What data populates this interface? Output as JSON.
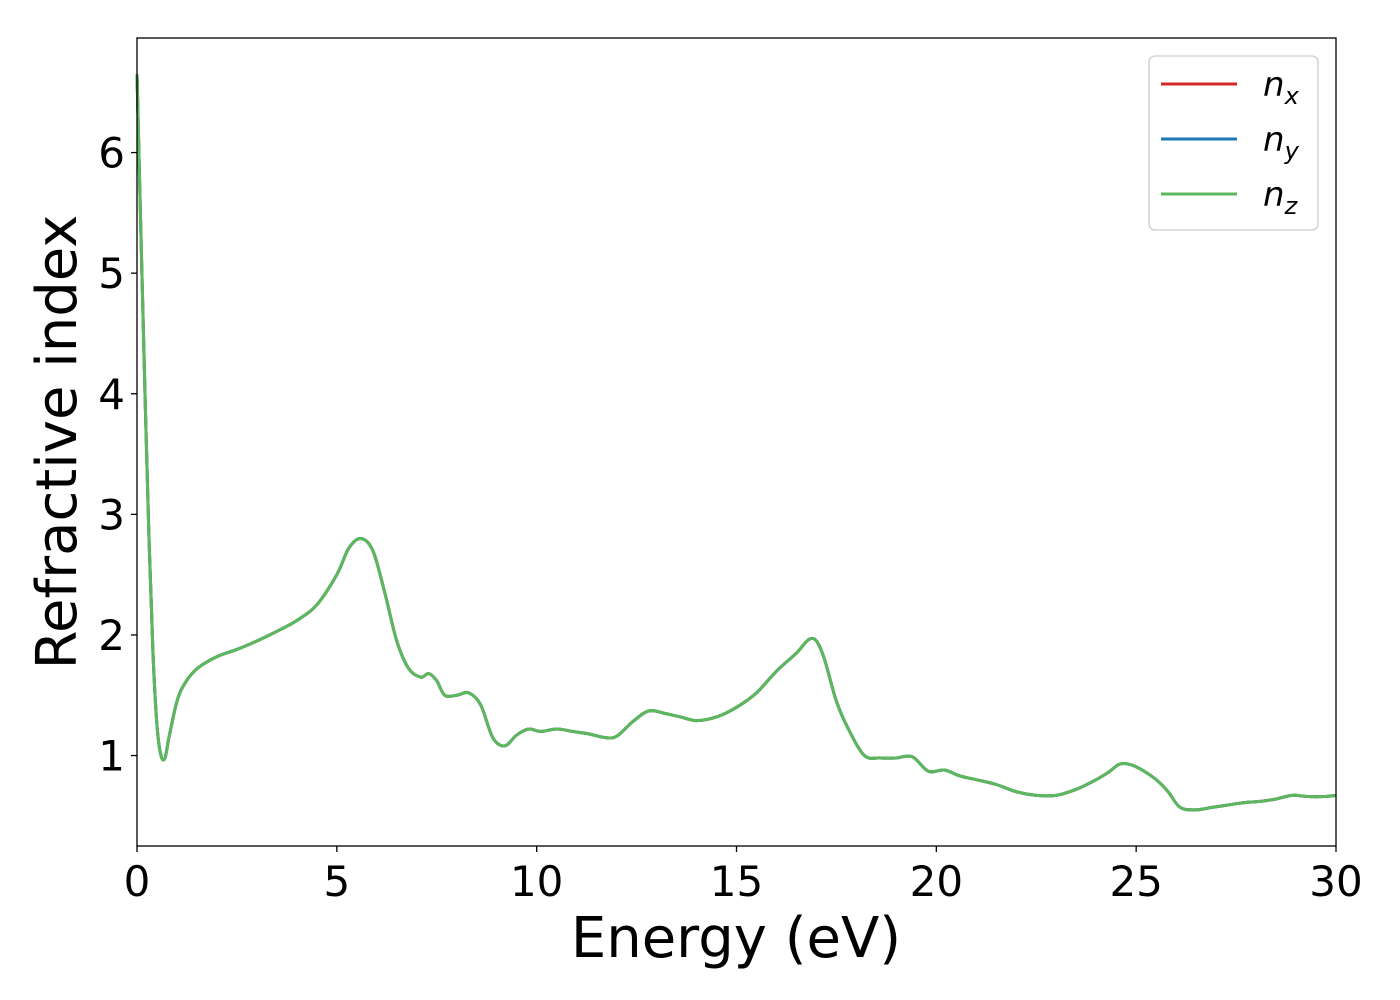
{
  "chart_data": {
    "type": "line",
    "xlabel": "Energy (eV)",
    "ylabel": "Refractive index",
    "xlim": [
      0,
      30
    ],
    "ylim": [
      0.25,
      6.95
    ],
    "x_ticks": [
      0,
      5,
      10,
      15,
      20,
      25,
      30
    ],
    "y_ticks": [
      1,
      2,
      3,
      4,
      5,
      6
    ],
    "grid": false,
    "legend_position": "top-right",
    "series": [
      {
        "name": "n_x",
        "label_base": "n",
        "label_sub": "x",
        "color": "#d62728",
        "x": [
          0,
          0.1,
          0.2,
          0.3,
          0.4,
          0.5,
          0.6,
          0.7,
          0.8,
          1.0,
          1.2,
          1.5,
          2.0,
          2.5,
          3.0,
          3.5,
          4.0,
          4.5,
          5.0,
          5.3,
          5.6,
          5.9,
          6.2,
          6.5,
          6.8,
          7.1,
          7.3,
          7.5,
          7.7,
          8.0,
          8.3,
          8.6,
          8.9,
          9.2,
          9.5,
          9.8,
          10.1,
          10.5,
          10.9,
          11.3,
          11.7,
          12.0,
          12.4,
          12.8,
          13.2,
          13.6,
          14.0,
          14.5,
          15.0,
          15.5,
          16.0,
          16.5,
          16.8,
          17.0,
          17.2,
          17.5,
          17.8,
          18.2,
          18.6,
          19.0,
          19.4,
          19.8,
          20.2,
          20.6,
          21.0,
          21.5,
          22.0,
          22.5,
          23.0,
          23.5,
          24.0,
          24.3,
          24.6,
          24.9,
          25.2,
          25.5,
          25.8,
          26.1,
          26.5,
          26.9,
          27.3,
          27.7,
          28.1,
          28.5,
          28.9,
          29.3,
          29.7,
          30.0
        ],
        "y": [
          6.65,
          5.3,
          4.0,
          2.8,
          1.85,
          1.25,
          1.0,
          0.98,
          1.15,
          1.45,
          1.6,
          1.72,
          1.82,
          1.88,
          1.95,
          2.03,
          2.12,
          2.25,
          2.5,
          2.72,
          2.8,
          2.7,
          2.35,
          1.95,
          1.72,
          1.65,
          1.68,
          1.62,
          1.5,
          1.5,
          1.52,
          1.42,
          1.15,
          1.08,
          1.17,
          1.22,
          1.2,
          1.22,
          1.2,
          1.18,
          1.15,
          1.16,
          1.28,
          1.37,
          1.35,
          1.32,
          1.29,
          1.32,
          1.4,
          1.52,
          1.7,
          1.85,
          1.96,
          1.95,
          1.8,
          1.45,
          1.22,
          1.0,
          0.98,
          0.98,
          0.99,
          0.87,
          0.88,
          0.83,
          0.8,
          0.76,
          0.7,
          0.67,
          0.67,
          0.72,
          0.8,
          0.86,
          0.93,
          0.92,
          0.87,
          0.8,
          0.7,
          0.57,
          0.55,
          0.57,
          0.59,
          0.61,
          0.62,
          0.64,
          0.67,
          0.66,
          0.66,
          0.67
        ]
      },
      {
        "name": "n_y",
        "label_base": "n",
        "label_sub": "y",
        "color": "#1f77b4",
        "x": [
          0,
          0.1,
          0.2,
          0.3,
          0.4,
          0.5,
          0.6,
          0.7,
          0.8,
          1.0,
          1.2,
          1.5,
          2.0,
          2.5,
          3.0,
          3.5,
          4.0,
          4.5,
          5.0,
          5.3,
          5.6,
          5.9,
          6.2,
          6.5,
          6.8,
          7.1,
          7.3,
          7.5,
          7.7,
          8.0,
          8.3,
          8.6,
          8.9,
          9.2,
          9.5,
          9.8,
          10.1,
          10.5,
          10.9,
          11.3,
          11.7,
          12.0,
          12.4,
          12.8,
          13.2,
          13.6,
          14.0,
          14.5,
          15.0,
          15.5,
          16.0,
          16.5,
          16.8,
          17.0,
          17.2,
          17.5,
          17.8,
          18.2,
          18.6,
          19.0,
          19.4,
          19.8,
          20.2,
          20.6,
          21.0,
          21.5,
          22.0,
          22.5,
          23.0,
          23.5,
          24.0,
          24.3,
          24.6,
          24.9,
          25.2,
          25.5,
          25.8,
          26.1,
          26.5,
          26.9,
          27.3,
          27.7,
          28.1,
          28.5,
          28.9,
          29.3,
          29.7,
          30.0
        ],
        "y": [
          6.65,
          5.3,
          4.0,
          2.8,
          1.85,
          1.25,
          1.0,
          0.98,
          1.15,
          1.45,
          1.6,
          1.72,
          1.82,
          1.88,
          1.95,
          2.03,
          2.12,
          2.25,
          2.5,
          2.72,
          2.8,
          2.7,
          2.35,
          1.95,
          1.72,
          1.65,
          1.68,
          1.62,
          1.5,
          1.5,
          1.52,
          1.42,
          1.15,
          1.08,
          1.17,
          1.22,
          1.2,
          1.22,
          1.2,
          1.18,
          1.15,
          1.16,
          1.28,
          1.37,
          1.35,
          1.32,
          1.29,
          1.32,
          1.4,
          1.52,
          1.7,
          1.85,
          1.96,
          1.95,
          1.8,
          1.45,
          1.22,
          1.0,
          0.98,
          0.98,
          0.99,
          0.87,
          0.88,
          0.83,
          0.8,
          0.76,
          0.7,
          0.67,
          0.67,
          0.72,
          0.8,
          0.86,
          0.93,
          0.92,
          0.87,
          0.8,
          0.7,
          0.57,
          0.55,
          0.57,
          0.59,
          0.61,
          0.62,
          0.64,
          0.67,
          0.66,
          0.66,
          0.67
        ]
      },
      {
        "name": "n_z",
        "label_base": "n",
        "label_sub": "z",
        "color": "#5cb85c",
        "x": [
          0,
          0.1,
          0.2,
          0.3,
          0.4,
          0.5,
          0.6,
          0.7,
          0.8,
          1.0,
          1.2,
          1.5,
          2.0,
          2.5,
          3.0,
          3.5,
          4.0,
          4.5,
          5.0,
          5.3,
          5.6,
          5.9,
          6.2,
          6.5,
          6.8,
          7.1,
          7.3,
          7.5,
          7.7,
          8.0,
          8.3,
          8.6,
          8.9,
          9.2,
          9.5,
          9.8,
          10.1,
          10.5,
          10.9,
          11.3,
          11.7,
          12.0,
          12.4,
          12.8,
          13.2,
          13.6,
          14.0,
          14.5,
          15.0,
          15.5,
          16.0,
          16.5,
          16.8,
          17.0,
          17.2,
          17.5,
          17.8,
          18.2,
          18.6,
          19.0,
          19.4,
          19.8,
          20.2,
          20.6,
          21.0,
          21.5,
          22.0,
          22.5,
          23.0,
          23.5,
          24.0,
          24.3,
          24.6,
          24.9,
          25.2,
          25.5,
          25.8,
          26.1,
          26.5,
          26.9,
          27.3,
          27.7,
          28.1,
          28.5,
          28.9,
          29.3,
          29.7,
          30.0
        ],
        "y": [
          6.65,
          5.3,
          4.0,
          2.8,
          1.85,
          1.25,
          1.0,
          0.98,
          1.15,
          1.45,
          1.6,
          1.72,
          1.82,
          1.88,
          1.95,
          2.03,
          2.12,
          2.25,
          2.5,
          2.72,
          2.8,
          2.7,
          2.35,
          1.95,
          1.72,
          1.65,
          1.68,
          1.62,
          1.5,
          1.5,
          1.52,
          1.42,
          1.15,
          1.08,
          1.17,
          1.22,
          1.2,
          1.22,
          1.2,
          1.18,
          1.15,
          1.16,
          1.28,
          1.37,
          1.35,
          1.32,
          1.29,
          1.32,
          1.4,
          1.52,
          1.7,
          1.85,
          1.96,
          1.95,
          1.8,
          1.45,
          1.22,
          1.0,
          0.98,
          0.98,
          0.99,
          0.87,
          0.88,
          0.83,
          0.8,
          0.76,
          0.7,
          0.67,
          0.67,
          0.72,
          0.8,
          0.86,
          0.93,
          0.92,
          0.87,
          0.8,
          0.7,
          0.57,
          0.55,
          0.57,
          0.59,
          0.61,
          0.62,
          0.64,
          0.67,
          0.66,
          0.66,
          0.67
        ]
      }
    ]
  }
}
